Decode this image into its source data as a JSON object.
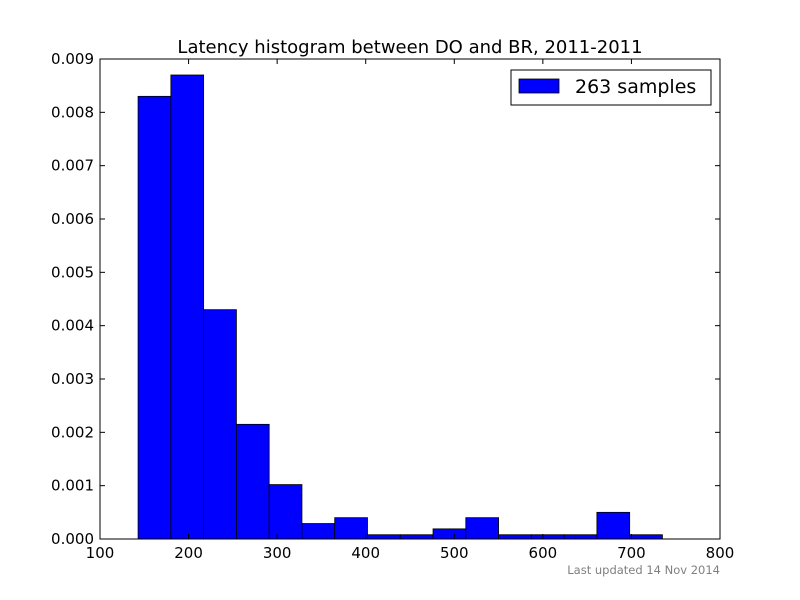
{
  "chart_data": {
    "type": "bar",
    "title": "Latency histogram between DO and BR, 2011-2011",
    "xlabel": "",
    "ylabel": "",
    "xlim": [
      100,
      800
    ],
    "ylim": [
      0,
      0.009
    ],
    "xticks": [
      100,
      200,
      300,
      400,
      500,
      600,
      700,
      800
    ],
    "xtick_labels": [
      "100",
      "200",
      "300",
      "400",
      "500",
      "600",
      "700",
      "800"
    ],
    "yticks": [
      0,
      0.001,
      0.002,
      0.003,
      0.004,
      0.005,
      0.006,
      0.007,
      0.008,
      0.009
    ],
    "ytick_labels": [
      "0.000",
      "0.001",
      "0.002",
      "0.003",
      "0.004",
      "0.005",
      "0.006",
      "0.007",
      "0.008",
      "0.009"
    ],
    "grid": false,
    "legend_position": "top-right",
    "series": [
      {
        "name": "263 samples",
        "color": "#0000ff",
        "bins": [
          {
            "x0": 143,
            "x1": 180,
            "value": 0.0083
          },
          {
            "x0": 180,
            "x1": 217,
            "value": 0.0087
          },
          {
            "x0": 217,
            "x1": 254,
            "value": 0.0043
          },
          {
            "x0": 254,
            "x1": 291,
            "value": 0.00215
          },
          {
            "x0": 291,
            "x1": 328,
            "value": 0.00102
          },
          {
            "x0": 328,
            "x1": 365,
            "value": 0.00029
          },
          {
            "x0": 365,
            "x1": 402,
            "value": 0.0004
          },
          {
            "x0": 402,
            "x1": 439,
            "value": 8e-05
          },
          {
            "x0": 439,
            "x1": 476,
            "value": 8e-05
          },
          {
            "x0": 476,
            "x1": 513,
            "value": 0.00019
          },
          {
            "x0": 513,
            "x1": 550,
            "value": 0.0004
          },
          {
            "x0": 550,
            "x1": 587,
            "value": 8e-05
          },
          {
            "x0": 587,
            "x1": 624,
            "value": 8e-05
          },
          {
            "x0": 624,
            "x1": 661,
            "value": 8e-05
          },
          {
            "x0": 661,
            "x1": 698,
            "value": 0.0005
          },
          {
            "x0": 698,
            "x1": 735,
            "value": 8e-05
          }
        ]
      }
    ],
    "footer": "Last updated 14 Nov 2014",
    "footer_color": "#808080"
  }
}
